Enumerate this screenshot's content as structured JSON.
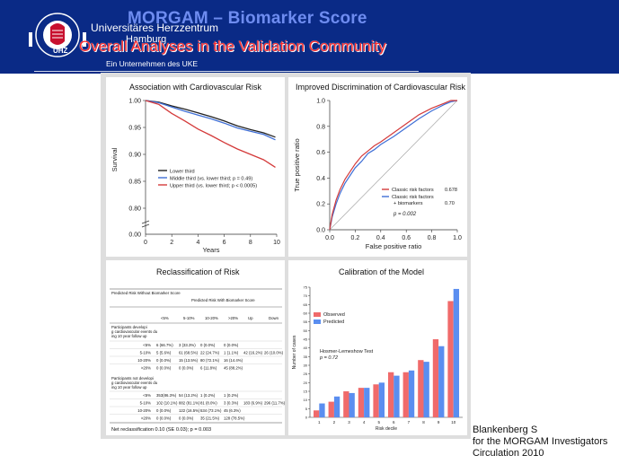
{
  "header": {
    "title": "MORGAM – Biomarker Score",
    "subtitle": "Overall Analyses in the Validation Community",
    "logo": {
      "name_line1": "Universitäres Herzzentrum",
      "name_line2": "Hamburg",
      "tagline": "Ein Unternehmen des UKE",
      "abbrev": "UHZ",
      "ring_text": "UNIVERSITÄRES HERZZENTRUM"
    }
  },
  "panels": {
    "survival": {
      "title": "Association with Cardiovascular Risk",
      "xlabel": "Years",
      "ylabel": "Survival",
      "y_ticks": [
        "1.00",
        "0.95",
        "0.90",
        "0.85",
        "0.80",
        "0.00"
      ],
      "x_ticks": [
        "0",
        "2",
        "4",
        "6",
        "8",
        "10"
      ],
      "legend": [
        {
          "label": "Lower third",
          "color": "#222222"
        },
        {
          "label": "Middle third (vs. lower third; p = 0.49)",
          "color": "#3f6fd6"
        },
        {
          "label": "Upper third (vs. lower third; p < 0.0005)",
          "color": "#d43a3a"
        }
      ]
    },
    "roc": {
      "title": "Improved Discrimination of Cardiovascular Risk",
      "xlabel": "False positive ratio",
      "ylabel": "True positive ratio",
      "ticks": [
        "0.0",
        "0.2",
        "0.4",
        "0.6",
        "0.8",
        "1.0"
      ],
      "legend": [
        {
          "label": "Classic risk factors",
          "value": "0.678",
          "color": "#3f6fd6"
        },
        {
          "label": "Classic risk factors",
          "label2": "+ biomarkers",
          "value": "0.70",
          "color": "#d43a3a"
        }
      ],
      "pvalue": "p = 0.002"
    },
    "reclass": {
      "title": "Reclassification of Risk",
      "corner_header": "Predicted Risk Without Biomarker Score",
      "group_header": "Predicted Risk With Biomarker Score",
      "columns": [
        "<5%",
        "5-10%",
        "10-20%",
        ">20%",
        "Up",
        "Down"
      ],
      "section1": "Participants developing cardiovascular events during 10 year follow up",
      "rows1": [
        [
          "<5%",
          "6 (66.7%)",
          "3 (33.3%)",
          "0 (0.0%)",
          "0 (0.0%)",
          "",
          ""
        ],
        [
          "5-10%",
          "5 (5.6%)",
          "61 (68.5%)",
          "22 (24.7%)",
          "1 (1.1%)",
          "42 (16.2%)",
          "26 (10.0%)"
        ],
        [
          "10-20%",
          "0 (0.0%)",
          "15 (13.5%)",
          "80 (72.1%)",
          "16 (14.4%)",
          "",
          ""
        ],
        [
          ">20%",
          "0 (0.0%)",
          "0 (0.0%)",
          "6 (11.8%)",
          "45 (88.2%)",
          "",
          ""
        ]
      ],
      "section2": "Participants not developing cardiovascular events during 10 year follow up",
      "rows2": [
        [
          "<5%",
          "353(86.3%)",
          "54 (13.2%)",
          "1 (0.2%)",
          "1 (0.2%)",
          "",
          ""
        ],
        [
          "5-10%",
          "102 (10.1%)",
          "882 (81.1%)",
          "81 (8.0%)",
          "3 (0.3%)",
          "183 (6.9%)",
          "296 (11.7%)"
        ],
        [
          "10-20%",
          "0 (0.0%)",
          "122 (16.5%)",
          "534 (73.1%)",
          "45 (6.3%)",
          "",
          ""
        ],
        [
          ">20%",
          "0 (0.0%)",
          "0 (0.0%)",
          "35 (21.5%)",
          "128 (78.5%)",
          "",
          ""
        ]
      ],
      "footer": "Net reclassification 0.10 (SE 0.03); p = 0.003"
    },
    "calibration": {
      "title": "Calibration of the Model",
      "xlabel": "Risk decile",
      "ylabel": "Number of cases",
      "annotation1": "Hosmer-Lemeshow Test",
      "annotation2": "p = 0.72",
      "legend": [
        {
          "label": "Observed",
          "color": "#f06a6a"
        },
        {
          "label": "Predicted",
          "color": "#5a8ef0"
        }
      ]
    }
  },
  "chart_data": [
    {
      "type": "line",
      "title": "Association with Cardiovascular Risk",
      "xlabel": "Years",
      "ylabel": "Survival",
      "xlim": [
        0,
        10
      ],
      "ylim": [
        0.78,
        1.0
      ],
      "x": [
        0,
        1,
        2,
        3,
        4,
        5,
        6,
        7,
        8,
        9,
        9.9
      ],
      "series": [
        {
          "name": "Lower third",
          "values": [
            1.0,
            0.997,
            0.99,
            0.984,
            0.977,
            0.97,
            0.962,
            0.953,
            0.946,
            0.94,
            0.932
          ]
        },
        {
          "name": "Middle third (vs. lower third; p = 0.49)",
          "values": [
            1.0,
            0.996,
            0.988,
            0.98,
            0.973,
            0.966,
            0.958,
            0.949,
            0.943,
            0.937,
            0.927
          ]
        },
        {
          "name": "Upper third (vs. lower third; p < 0.0005)",
          "values": [
            1.0,
            0.993,
            0.976,
            0.962,
            0.947,
            0.935,
            0.922,
            0.91,
            0.9,
            0.89,
            0.876
          ]
        }
      ]
    },
    {
      "type": "line",
      "title": "Improved Discrimination of Cardiovascular Risk",
      "xlabel": "False positive ratio",
      "ylabel": "True positive ratio",
      "xlim": [
        0,
        1
      ],
      "ylim": [
        0,
        1
      ],
      "x": [
        0,
        0.02,
        0.05,
        0.08,
        0.12,
        0.16,
        0.2,
        0.25,
        0.3,
        0.35,
        0.4,
        0.5,
        0.6,
        0.7,
        0.8,
        0.9,
        0.95,
        1.0
      ],
      "series": [
        {
          "name": "Classic risk factors 0.678",
          "values": [
            0,
            0.1,
            0.2,
            0.28,
            0.36,
            0.42,
            0.48,
            0.53,
            0.59,
            0.62,
            0.66,
            0.72,
            0.79,
            0.86,
            0.92,
            0.97,
            0.99,
            1.0
          ]
        },
        {
          "name": "Classic risk factors + biomarkers 0.70",
          "values": [
            0,
            0.12,
            0.23,
            0.31,
            0.39,
            0.45,
            0.51,
            0.57,
            0.61,
            0.65,
            0.68,
            0.75,
            0.82,
            0.89,
            0.94,
            0.98,
            1.0,
            1.0
          ]
        }
      ]
    },
    {
      "type": "bar",
      "title": "Calibration of the Model",
      "xlabel": "Risk decile",
      "ylabel": "Number of cases",
      "ylim": [
        0,
        75
      ],
      "y_ticks": [
        0,
        5,
        10,
        15,
        20,
        25,
        30,
        35,
        40,
        45,
        50,
        55,
        60,
        65,
        70,
        75
      ],
      "categories": [
        "1",
        "2",
        "3",
        "4",
        "5",
        "6",
        "7",
        "8",
        "9",
        "10"
      ],
      "series": [
        {
          "name": "Observed",
          "values": [
            4,
            9,
            15,
            17,
            19,
            26,
            26,
            33,
            45,
            67
          ]
        },
        {
          "name": "Predicted",
          "values": [
            8,
            12,
            14,
            17,
            20,
            24,
            27,
            32,
            41,
            74
          ]
        }
      ]
    }
  ],
  "citation": {
    "line1": "Blankenberg S",
    "line2": "for the MORGAM Investigators",
    "line3": "Circulation 2010"
  }
}
